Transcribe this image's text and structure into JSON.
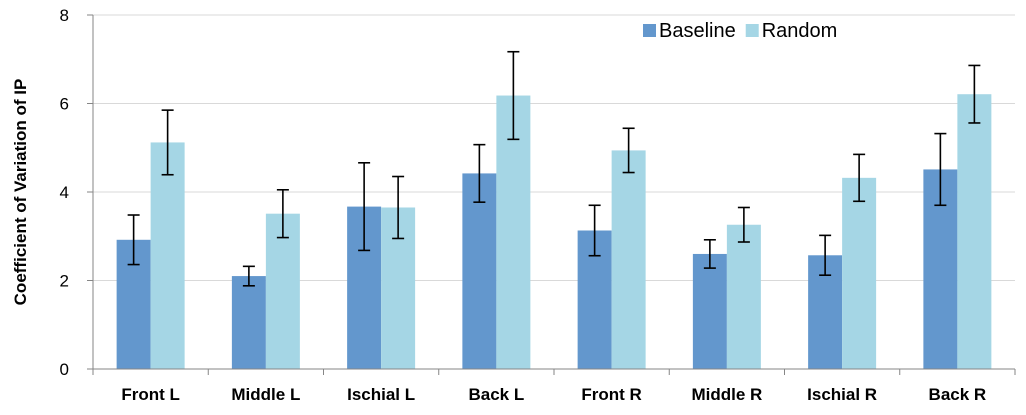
{
  "chart_data": {
    "type": "bar",
    "title": "",
    "xlabel": "",
    "ylabel": "Coefficient of Variation of IP",
    "ylim": [
      0,
      8
    ],
    "yticks": [
      0,
      2,
      4,
      6,
      8
    ],
    "grid": true,
    "legend_position": "top-right",
    "categories": [
      "Front L",
      "Middle L",
      "Ischial L",
      "Back L",
      "Front R",
      "Middle R",
      "Ischial R",
      "Back R"
    ],
    "series": [
      {
        "name": "Baseline",
        "color": "#6397cd",
        "values": [
          2.92,
          2.1,
          3.67,
          4.42,
          3.13,
          2.6,
          2.57,
          4.51
        ],
        "error": [
          0.56,
          0.22,
          0.99,
          0.65,
          0.57,
          0.32,
          0.45,
          0.81
        ]
      },
      {
        "name": "Random",
        "color": "#a5d6e5",
        "values": [
          5.12,
          3.51,
          3.65,
          6.18,
          4.94,
          3.26,
          4.32,
          6.21
        ],
        "error": [
          0.73,
          0.54,
          0.7,
          0.99,
          0.5,
          0.39,
          0.53,
          0.65
        ]
      }
    ]
  }
}
